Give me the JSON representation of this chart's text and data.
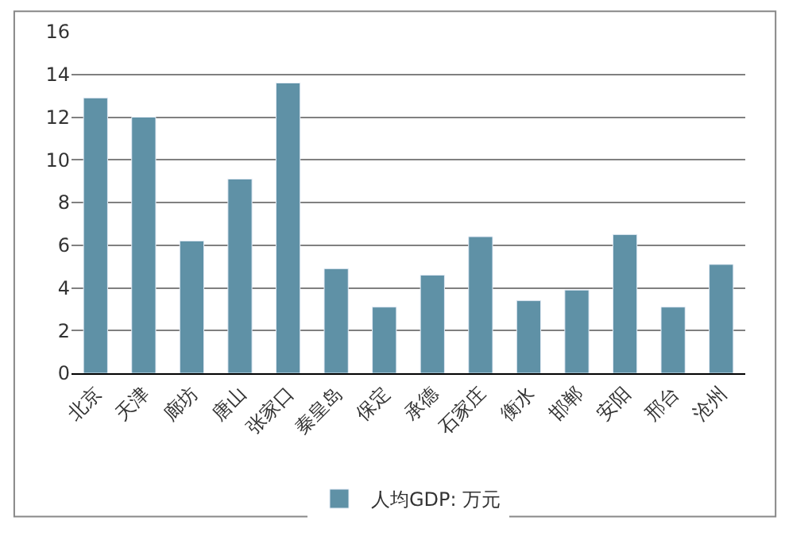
{
  "chart_data": {
    "type": "bar",
    "categories": [
      "北京",
      "天津",
      "廊坊",
      "唐山",
      "张家口",
      "秦皇岛",
      "保定",
      "承德",
      "石家庄",
      "衡水",
      "邯郸",
      "安阳",
      "邢台",
      "沧州"
    ],
    "series": [
      {
        "name": "人均GDP: 万元",
        "color": "#5f91a6",
        "values": [
          12.9,
          12.0,
          6.2,
          9.1,
          13.6,
          4.9,
          3.1,
          4.6,
          6.4,
          3.4,
          3.9,
          6.5,
          3.1,
          5.1
        ]
      }
    ],
    "ylim": [
      0,
      16
    ],
    "yticks": [
      0,
      2,
      4,
      6,
      8,
      10,
      12,
      14,
      16
    ],
    "grid": "y",
    "legend": "bottom"
  }
}
